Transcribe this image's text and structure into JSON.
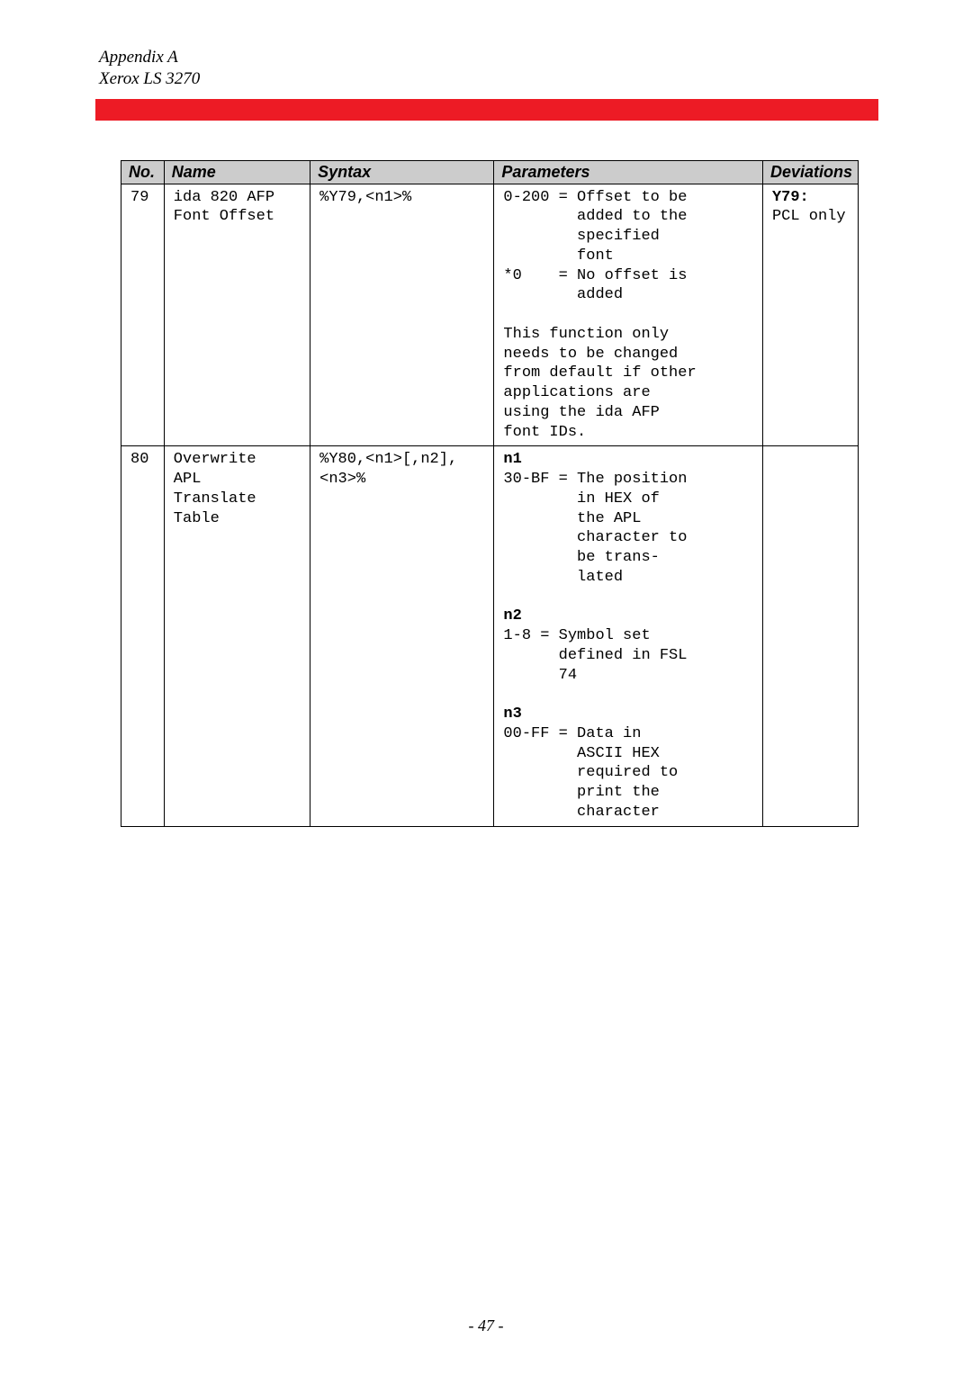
{
  "header": {
    "line1": "Appendix A",
    "line2": "Xerox LS 3270"
  },
  "table": {
    "headers": {
      "no": "No.",
      "name": "Name",
      "syntax": "Syntax",
      "parameters": "Parameters",
      "deviations": "Deviations"
    },
    "rows": [
      {
        "no": "79",
        "name": "ida 820 AFP\nFont Offset",
        "syntax": "%Y79,<n1>%",
        "parameters": "0-200 = Offset to be\n        added to the\n        specified\n        font\n*0    = No offset is\n        added\n\nThis function only\nneeds to be changed\nfrom default if other\napplications are\nusing the ida AFP\nfont IDs.",
        "deviations_bold": "Y79:",
        "deviations_rest": "PCL only"
      },
      {
        "no": "80",
        "name": "Overwrite\nAPL\nTranslate\nTable",
        "syntax": "%Y80,<n1>[,n2],\n<n3>%",
        "param_n1_label": "n1",
        "param_n1_body": "30-BF = The position\n        in HEX of\n        the APL\n        character to\n        be trans-\n        lated",
        "param_n2_label": "n2",
        "param_n2_body": "1-8 = Symbol set\n      defined in FSL\n      74",
        "param_n3_label": "n3",
        "param_n3_body": "00-FF = Data in\n        ASCII HEX\n        required to\n        print the\n        character",
        "deviations_bold": "",
        "deviations_rest": ""
      }
    ]
  },
  "footer": {
    "page": "- 47 -"
  },
  "colors": {
    "red_bar": "#ed1b25",
    "header_bg": "#cccccc",
    "border": "#000000",
    "background": "#ffffff"
  }
}
